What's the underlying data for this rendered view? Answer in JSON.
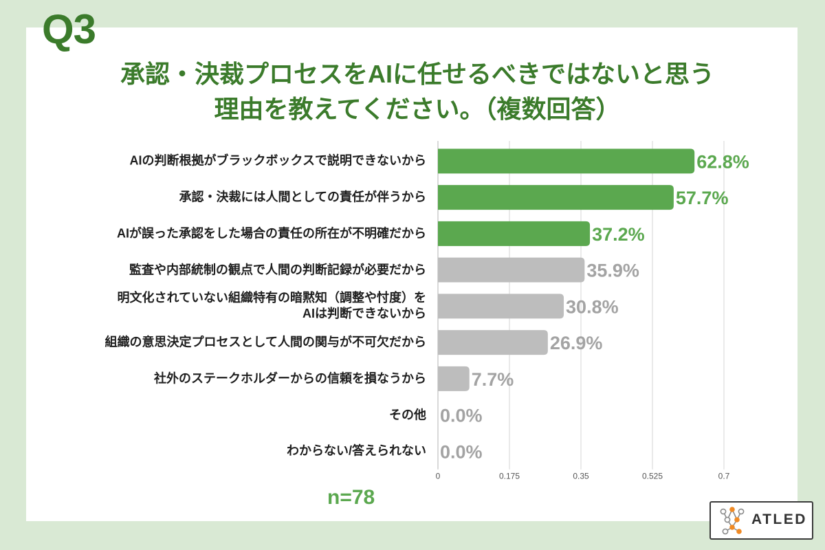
{
  "header": {
    "question_label": "Q3"
  },
  "theme": {
    "page_background": "#d9e9d4",
    "card_background": "#ffffff",
    "title_color": "#3b7b2b",
    "accent_green": "#5ba84f"
  },
  "chart_data": {
    "type": "bar",
    "orientation": "horizontal",
    "title": [
      "承認・決裁プロセスをAIに任せるべきではないと思う",
      "理由を教えてください。（複数回答）"
    ],
    "categories": [
      "AIの判断根拠がブラックボックスで説明できないから",
      "承認・決裁には人間としての責任が伴うから",
      "AIが誤った承認をした場合の責任の所在が不明確だから",
      "監査や内部統制の観点で人間の判断記録が必要だから",
      "明文化されていない組織特有の暗黙知（調整や忖度）を\nAIは判断できないから",
      "組織の意思決定プロセスとして人間の関与が不可欠だから",
      "社外のステークホルダーからの信頼を損なうから",
      "その他",
      "わからない/答えられない"
    ],
    "values": [
      0.628,
      0.577,
      0.372,
      0.359,
      0.308,
      0.269,
      0.077,
      0.0,
      0.0
    ],
    "data_labels": [
      "62.8%",
      "57.7%",
      "37.2%",
      "35.9%",
      "30.8%",
      "26.9%",
      "7.7%",
      "0.0%",
      "0.0%"
    ],
    "highlighted": [
      true,
      true,
      true,
      false,
      false,
      false,
      false,
      false,
      false
    ],
    "colors": {
      "highlight_bar": "#5ba84f",
      "default_bar": "#bdbdbd",
      "highlight_label": "#5ba84f",
      "default_label": "#a3a3a3"
    },
    "xlim": [
      0,
      0.7
    ],
    "xticks": [
      0,
      0.175,
      0.35,
      0.525,
      0.7
    ],
    "grid": true,
    "sample_size": "n=78"
  },
  "logo": {
    "text": "ATLED",
    "icon": "network-nodes-icon",
    "node_color": "#f08a24"
  }
}
